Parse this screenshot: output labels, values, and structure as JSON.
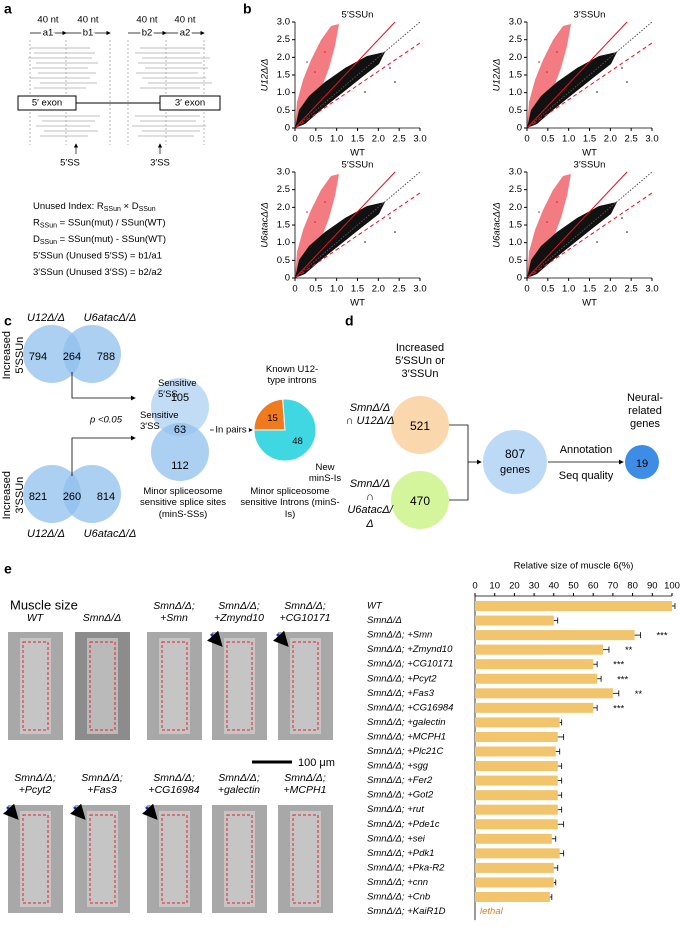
{
  "panel_a": {
    "label": "a",
    "nt_labels": [
      "40 nt",
      "40 nt",
      "40 nt",
      "40 nt"
    ],
    "segments": [
      "a1",
      "b1",
      "b2",
      "a2"
    ],
    "exons": [
      "5′ exon",
      "3′ exon"
    ],
    "sites": [
      "5′SS",
      "3′SS"
    ],
    "formulas": [
      [
        "Unused Index: R",
        "SSun",
        " × D",
        "SSun"
      ],
      [
        "R",
        "SSun",
        " = SSun(mut) / SSun(WT)"
      ],
      [
        "D",
        "SSun",
        " = SSun(mut) - SSun(WT)"
      ],
      [
        "5′SSun (Unused 5′SS) = b1/a1"
      ],
      [
        "3′SSun (Unused 3′SS) = b2/a2"
      ]
    ]
  },
  "panel_b": {
    "label": "b"
  },
  "panel_c": {
    "label": "c",
    "rows": [
      "Increased 5′SSUn",
      "Increased 3′SSUn"
    ],
    "set_labels": [
      "U12Δ/Δ",
      "U6atacΔ/Δ"
    ],
    "venn_5ss": [
      794,
      264,
      788
    ],
    "venn_3ss": [
      821,
      260,
      814
    ],
    "sensitive": [
      "Sensitive 5′SS",
      "Sensitive 3′SS"
    ],
    "p_value": "p <0.05",
    "minS_SS": [
      105,
      63,
      112
    ],
    "minS_SS_caption": "Minor spliceosome sensitive splice sites (minS-SSs)",
    "pairs": "In pairs",
    "minS_I_caption": "Minor spliceosome sensitive Introns (minS-Is)"
  },
  "panel_d": {
    "label": "d",
    "header": "Increased 5′SSUn or 3′SSUn",
    "sets": [
      {
        "name": "SmnΔ/Δ ∩ U12Δ/Δ",
        "count": 521
      },
      {
        "name": "SmnΔ/Δ ∩ U6atacΔ/Δ",
        "count": 470
      }
    ],
    "union": {
      "count": 807,
      "unit": "genes"
    },
    "steps": [
      "Annotation",
      "Seq quality"
    ],
    "result": {
      "count": 19,
      "label": "Neural-related genes"
    }
  },
  "panel_e": {
    "label": "e",
    "title": "Muscle size",
    "images": [
      "WT",
      "SmnΔ/Δ",
      "SmnΔ/Δ; +Smn",
      "SmnΔ/Δ; +Zmynd10",
      "SmnΔ/Δ; +CG10171",
      "SmnΔ/Δ; +Pcyt2",
      "SmnΔ/Δ; +Fas3",
      "SmnΔ/Δ; +CG16984",
      "SmnΔ/Δ; +galectin",
      "SmnΔ/Δ; +MCPH1"
    ],
    "scale_bar": "100 μm"
  },
  "chart_data": [
    {
      "type": "scatter",
      "title": "5′SSUn",
      "xlabel": "WT",
      "ylabel": "U12Δ/Δ",
      "xlim": [
        0,
        3
      ],
      "ylim": [
        0,
        3
      ],
      "xticks": [
        0,
        0.5,
        {
          "value": 1,
          "label": "1.0"
        },
        1.5,
        {
          "value": 2,
          "label": "2.0"
        },
        2.5,
        {
          "value": 3,
          "label": "3.0"
        }
      ],
      "yticks": [
        0,
        0.5,
        {
          "value": 1,
          "label": "1.0"
        },
        1.5,
        {
          "value": 2,
          "label": "2.0"
        },
        2.5,
        {
          "value": 3,
          "label": "3.0"
        }
      ]
    },
    {
      "type": "scatter",
      "title": "3′SSUn",
      "xlabel": "WT",
      "ylabel": "U12Δ/Δ",
      "xlim": [
        0,
        3
      ],
      "ylim": [
        0,
        3
      ],
      "xticks": [
        0,
        0.5,
        {
          "value": 1,
          "label": "1.0"
        },
        1.5,
        {
          "value": 2,
          "label": "2.0"
        },
        2.5,
        {
          "value": 3,
          "label": "3.0"
        }
      ],
      "yticks": [
        0,
        0.5,
        {
          "value": 1,
          "label": "1.0"
        },
        1.5,
        {
          "value": 2,
          "label": "2.0"
        },
        2.5,
        {
          "value": 3,
          "label": "3.0"
        }
      ]
    },
    {
      "type": "scatter",
      "title": "5′SSUn",
      "xlabel": "WT",
      "ylabel": "U6atacΔ/Δ",
      "xlim": [
        0,
        3
      ],
      "ylim": [
        0,
        3
      ],
      "xticks": [
        0,
        0.5,
        {
          "value": 1,
          "label": "1.0"
        },
        1.5,
        {
          "value": 2,
          "label": "2.0"
        },
        2.5,
        {
          "value": 3,
          "label": "3.0"
        }
      ],
      "yticks": [
        0,
        0.5,
        {
          "value": 1,
          "label": "1.0"
        },
        1.5,
        {
          "value": 2,
          "label": "2.0"
        },
        2.5,
        {
          "value": 3,
          "label": "3.0"
        }
      ]
    },
    {
      "type": "scatter",
      "title": "3′SSUn",
      "xlabel": "WT",
      "ylabel": "U6atacΔ/Δ",
      "xlim": [
        0,
        3
      ],
      "ylim": [
        0,
        3
      ],
      "xticks": [
        0,
        0.5,
        {
          "value": 1,
          "label": "1.0"
        },
        1.5,
        {
          "value": 2,
          "label": "2.0"
        },
        2.5,
        {
          "value": 3,
          "label": "3.0"
        }
      ],
      "yticks": [
        0,
        0.5,
        {
          "value": 1,
          "label": "1.0"
        },
        1.5,
        {
          "value": 2,
          "label": "2.0"
        },
        2.5,
        {
          "value": 3,
          "label": "3.0"
        }
      ]
    },
    {
      "type": "pie",
      "categories": [
        "Known U12-type introns",
        "New minS-Is"
      ],
      "values": [
        15,
        48
      ],
      "colors": [
        "#f07a1e",
        "#3fd8e2"
      ]
    },
    {
      "type": "bar",
      "orientation": "horizontal",
      "title": "Relative size of muscle 6(%)",
      "color": "#f2c46c",
      "error_color": "#000",
      "categories": [
        "WT",
        "SmnΔ/Δ",
        "SmnΔ/Δ; +Smn",
        "SmnΔ/Δ; +Zmynd10",
        "SmnΔ/Δ; +CG10171",
        "SmnΔ/Δ; +Pcyt2",
        "SmnΔ/Δ; +Fas3",
        "SmnΔ/Δ; +CG16984",
        "SmnΔ/Δ; +galectin",
        "SmnΔ/Δ; +MCPH1",
        "SmnΔ/Δ; +Plc21C",
        "SmnΔ/Δ; +sgg",
        "SmnΔ/Δ; +Fer2",
        "SmnΔ/Δ; +Got2",
        "SmnΔ/Δ; +rut",
        "SmnΔ/Δ; +Pde1c",
        "SmnΔ/Δ; +sei",
        "SmnΔ/Δ; +Pdk1",
        "SmnΔ/Δ; +Pka-R2",
        "SmnΔ/Δ; +cnn",
        "SmnΔ/Δ; +Cnb",
        "SmnΔ/Δ; +KaiR1D"
      ],
      "values": [
        100,
        40,
        81,
        65,
        60,
        62,
        70,
        60,
        43,
        42,
        41,
        42,
        42,
        42,
        42,
        42,
        39,
        43,
        40,
        40,
        38,
        null
      ],
      "errors": [
        1.5,
        2,
        3,
        3,
        2,
        2,
        3,
        2,
        1,
        3,
        2,
        2,
        2,
        2,
        2,
        3,
        2,
        2,
        2,
        1,
        1,
        null
      ],
      "value_labels": [
        null,
        null,
        null,
        null,
        null,
        null,
        null,
        null,
        null,
        null,
        null,
        null,
        null,
        null,
        null,
        null,
        null,
        null,
        null,
        null,
        null,
        "lethal"
      ],
      "significance": [
        null,
        null,
        "***",
        "**",
        "***",
        "***",
        "**",
        "***",
        null,
        null,
        null,
        null,
        null,
        null,
        null,
        null,
        null,
        null,
        null,
        null,
        null,
        null
      ],
      "xlim": [
        0,
        100
      ],
      "xticks": [
        0,
        10,
        20,
        30,
        40,
        50,
        60,
        70,
        80,
        90,
        100
      ]
    }
  ]
}
